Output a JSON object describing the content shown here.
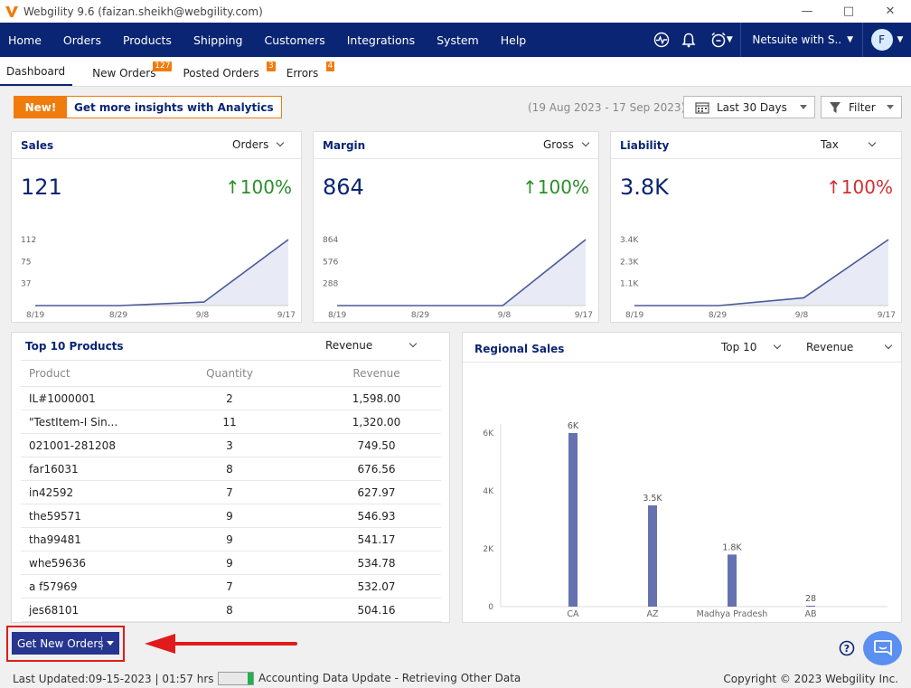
{
  "window": {
    "title": "Webgility 9.6 (faizan.sheikh@webgility.com)"
  },
  "nav": {
    "items": [
      "Home",
      "Orders",
      "Products",
      "Shipping",
      "Customers",
      "Integrations",
      "System",
      "Help"
    ],
    "account_label": "Netsuite with S..",
    "avatar_initial": "F"
  },
  "tabs": [
    {
      "label": "Dashboard",
      "badge": ""
    },
    {
      "label": "New Orders",
      "badge": "127"
    },
    {
      "label": "Posted Orders",
      "badge": "3"
    },
    {
      "label": "Errors",
      "badge": "4"
    }
  ],
  "banner": {
    "tag": "New!",
    "link": "Get more insights with Analytics"
  },
  "filters": {
    "date_range_text": "(19 Aug 2023 - 17 Sep 2023)",
    "period": "Last 30 Days",
    "filter_label": "Filter"
  },
  "kpis": [
    {
      "title": "Sales",
      "selector": "Orders",
      "value": "121",
      "change": "100%",
      "direction": "up",
      "chart": {
        "y_ticks": [
          "112",
          "75",
          "37"
        ],
        "x_ticks": [
          "8/19",
          "8/29",
          "9/8",
          "9/17"
        ],
        "values": [
          0,
          0,
          6,
          112
        ],
        "y_max": 112
      }
    },
    {
      "title": "Margin",
      "selector": "Gross",
      "value": "864",
      "change": "100%",
      "direction": "up",
      "chart": {
        "y_ticks": [
          "864",
          "576",
          "288"
        ],
        "x_ticks": [
          "8/19",
          "8/29",
          "9/8",
          "9/17"
        ],
        "values": [
          0,
          0,
          0,
          864
        ],
        "y_max": 864
      }
    },
    {
      "title": "Liability",
      "selector": "Tax",
      "value": "3.8K",
      "change": "100%",
      "direction": "down",
      "chart": {
        "y_ticks": [
          "3.4K",
          "2.3K",
          "1.1K"
        ],
        "x_ticks": [
          "8/19",
          "8/29",
          "9/8",
          "9/17"
        ],
        "values": [
          0,
          0,
          400,
          3400
        ],
        "y_max": 3400
      }
    }
  ],
  "top_products": {
    "title": "Top 10 Products",
    "selector": "Revenue",
    "columns": [
      "Product",
      "Quantity",
      "Revenue"
    ],
    "rows": [
      [
        "IL#1000001",
        "2",
        "1,598.00"
      ],
      [
        "\"TestItem-I Sin...",
        "11",
        "1,320.00"
      ],
      [
        "021001-281208",
        "3",
        "749.50"
      ],
      [
        "far16031",
        "8",
        "676.56"
      ],
      [
        "in42592",
        "7",
        "627.97"
      ],
      [
        "the59571",
        "9",
        "546.93"
      ],
      [
        "tha99481",
        "9",
        "541.17"
      ],
      [
        "whe59636",
        "9",
        "534.78"
      ],
      [
        "a f57969",
        "7",
        "532.07"
      ],
      [
        "jes68101",
        "8",
        "504.16"
      ]
    ]
  },
  "regional_sales": {
    "title": "Regional Sales",
    "selector_top": "Top 10",
    "selector_metric": "Revenue"
  },
  "chart_data": {
    "type": "bar",
    "categories": [
      "CA",
      "AZ",
      "Madhya Pradesh",
      "AB"
    ],
    "values": [
      6000,
      3500,
      1800,
      28
    ],
    "data_labels": [
      "6K",
      "3.5K",
      "1.8K",
      "28"
    ],
    "y_ticks": [
      "6K",
      "4K",
      "2K",
      "0"
    ],
    "ylim": [
      0,
      6000
    ],
    "color": "#6672b0"
  },
  "footer": {
    "get_orders_label": "Get New Orders",
    "last_updated": "Last Updated:09-15-2023 | 01:57 hrs |",
    "progress": 0.15,
    "status_message": "Accounting Data Update - Retrieving Other Data",
    "copyright": "Copyright © 2023 Webgility Inc."
  },
  "colors": {
    "nav": "#0a2573",
    "accent": "#f07c0d",
    "up": "#2a8f2a",
    "down": "#d32f2f",
    "bars": "#6672b0"
  }
}
